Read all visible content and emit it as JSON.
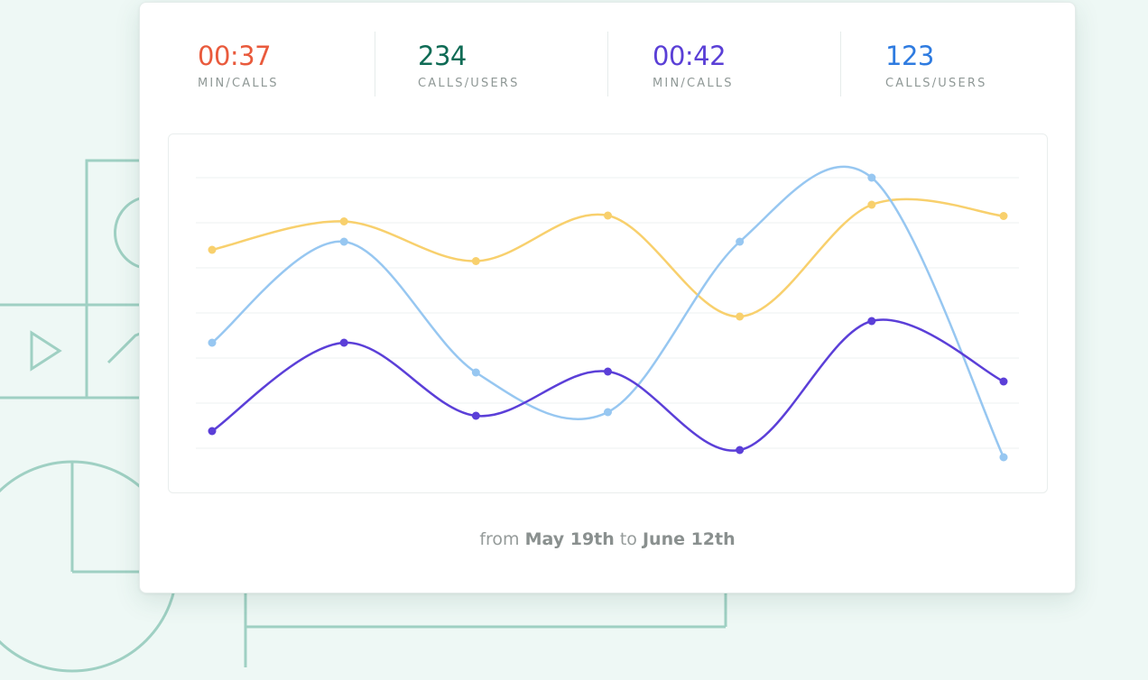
{
  "stats": [
    {
      "value": "00:37",
      "label": "MIN/CALLS",
      "color": "#e95a3c"
    },
    {
      "value": "234",
      "label": "CALLS/USERS",
      "color": "#0f6b55"
    },
    {
      "value": "00:42",
      "label": "MIN/CALLS",
      "color": "#5a3fd6"
    },
    {
      "value": "123",
      "label": "CALLS/USERS",
      "color": "#2e7be0"
    }
  ],
  "date_range": {
    "prefix": "from",
    "start": "May 19th",
    "connector": "to",
    "end": "June 12th"
  },
  "chart_data": {
    "type": "line",
    "x": [
      1,
      2,
      3,
      4,
      5,
      6,
      7
    ],
    "ylim": [
      0,
      6
    ],
    "grid": true,
    "series": [
      {
        "color": "#f8d06d",
        "values": [
          4.4,
          5.03,
          4.15,
          5.16,
          2.92,
          5.4,
          5.15
        ]
      },
      {
        "color": "#97c7f1",
        "values": [
          2.34,
          4.58,
          1.68,
          0.8,
          4.58,
          6.0,
          -0.2
        ]
      },
      {
        "color": "#5b3fd8",
        "values": [
          0.38,
          2.34,
          0.72,
          1.7,
          -0.04,
          2.82,
          1.48
        ]
      }
    ]
  }
}
